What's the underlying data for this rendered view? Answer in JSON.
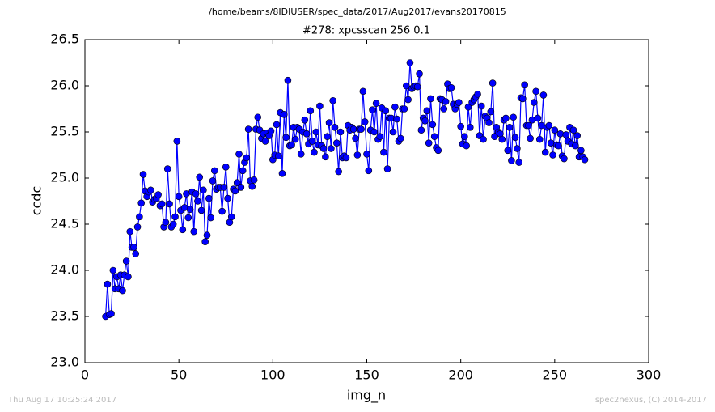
{
  "chart_data": {
    "type": "line",
    "suptitle": "/home/beams/8IDIUSER/spec_data/2017/Aug2017/evans20170815",
    "title": "#278: xpcsscan 256 0.1",
    "xlabel": "img_n",
    "ylabel": "ccdc",
    "footer_left": "Thu Aug 17 10:25:24 2017",
    "footer_right": "spec2nexus, (C) 2014-2017",
    "xlim": [
      0,
      300
    ],
    "xticks": [
      0,
      50,
      100,
      150,
      200,
      250,
      300
    ],
    "ylim": [
      23.0,
      26.5
    ],
    "yticks": [
      {
        "value": 23.0,
        "label": "23.0"
      },
      23.5,
      {
        "value": 24.0,
        "label": "24.0"
      },
      24.5,
      {
        "value": 25.0,
        "label": "25.0"
      },
      25.5,
      {
        "value": 26.0,
        "label": "26.0"
      },
      26.5
    ],
    "series": [
      {
        "color": "#0000ff",
        "x": [
          11,
          12,
          13,
          14,
          15,
          16,
          17,
          18,
          19,
          20,
          21,
          22,
          23,
          24,
          25,
          26,
          27,
          28,
          29,
          30,
          31,
          32,
          33,
          34,
          35,
          36,
          37,
          38,
          39,
          40,
          41,
          42,
          43,
          44,
          45,
          46,
          47,
          48,
          49,
          50,
          51,
          52,
          53,
          54,
          55,
          56,
          57,
          58,
          59,
          60,
          61,
          62,
          63,
          64,
          65,
          66,
          67,
          68,
          69,
          70,
          71,
          72,
          73,
          74,
          75,
          76,
          77,
          78,
          79,
          80,
          81,
          82,
          83,
          84,
          85,
          86,
          87,
          88,
          89,
          90,
          91,
          92,
          93,
          94,
          95,
          96,
          97,
          98,
          99,
          100,
          101,
          102,
          103,
          104,
          105,
          106,
          107,
          108,
          109,
          110,
          111,
          112,
          113,
          114,
          115,
          116,
          117,
          118,
          119,
          120,
          121,
          122,
          123,
          124,
          125,
          126,
          127,
          128,
          129,
          130,
          131,
          132,
          133,
          134,
          135,
          136,
          137,
          138,
          139,
          140,
          141,
          142,
          143,
          144,
          145,
          146,
          147,
          148,
          149,
          150,
          151,
          152,
          153,
          154,
          155,
          156,
          157,
          158,
          159,
          160,
          161,
          162,
          163,
          164,
          165,
          166,
          167,
          168,
          169,
          170,
          171,
          172,
          173,
          174,
          175,
          176,
          177,
          178,
          179,
          180,
          181,
          182,
          183,
          184,
          185,
          186,
          187,
          188,
          189,
          190,
          191,
          192,
          193,
          194,
          195,
          196,
          197,
          198,
          199,
          200,
          201,
          202,
          203,
          204,
          205,
          206,
          207,
          208,
          209,
          210,
          211,
          212,
          213,
          214,
          215,
          216,
          217,
          218,
          219,
          220,
          221,
          222,
          223,
          224,
          225,
          226,
          227,
          228,
          229,
          230,
          231,
          232,
          233,
          234,
          235,
          236,
          237,
          238,
          239,
          240,
          241,
          242,
          243,
          244,
          245,
          246,
          247,
          248,
          249,
          250,
          251,
          252,
          253,
          254,
          255,
          256,
          257,
          258,
          259,
          260,
          261,
          262,
          263,
          264,
          265,
          266
        ],
        "values": [
          23.5,
          23.85,
          23.52,
          23.53,
          24.0,
          23.8,
          23.93,
          23.8,
          23.95,
          23.78,
          23.95,
          24.1,
          23.93,
          24.42,
          24.25,
          24.25,
          24.18,
          24.47,
          24.58,
          24.73,
          25.04,
          24.86,
          24.8,
          24.85,
          24.87,
          24.74,
          24.77,
          24.78,
          24.82,
          24.7,
          24.72,
          24.47,
          24.52,
          25.1,
          24.72,
          24.47,
          24.5,
          24.58,
          25.4,
          24.8,
          24.65,
          24.44,
          24.68,
          24.83,
          24.57,
          24.66,
          24.85,
          24.42,
          24.83,
          24.75,
          25.01,
          24.65,
          24.87,
          24.31,
          24.38,
          24.78,
          24.57,
          24.97,
          25.08,
          24.88,
          24.9,
          24.9,
          24.64,
          24.9,
          25.12,
          24.78,
          24.52,
          24.58,
          24.88,
          24.86,
          24.95,
          25.26,
          24.9,
          25.08,
          25.17,
          25.22,
          25.53,
          24.97,
          24.91,
          24.98,
          25.53,
          25.66,
          25.52,
          25.43,
          25.48,
          25.4,
          25.49,
          25.46,
          25.51,
          25.2,
          25.25,
          25.58,
          25.24,
          25.71,
          25.05,
          25.69,
          25.44,
          26.06,
          25.35,
          25.36,
          25.55,
          25.42,
          25.55,
          25.53,
          25.26,
          25.5,
          25.63,
          25.48,
          25.37,
          25.73,
          25.4,
          25.28,
          25.5,
          25.36,
          25.78,
          25.35,
          25.32,
          25.23,
          25.45,
          25.6,
          25.32,
          25.84,
          25.55,
          25.38,
          25.07,
          25.5,
          25.22,
          25.24,
          25.22,
          25.57,
          25.52,
          25.55,
          25.53,
          25.43,
          25.25,
          25.53,
          25.53,
          25.94,
          25.61,
          25.26,
          25.08,
          25.52,
          25.74,
          25.5,
          25.81,
          25.42,
          25.45,
          25.76,
          25.28,
          25.73,
          25.1,
          25.65,
          25.65,
          25.5,
          25.77,
          25.64,
          25.4,
          25.43,
          25.75,
          25.75,
          26.0,
          25.85,
          26.25,
          25.97,
          25.99,
          26.0,
          25.99,
          26.13,
          25.52,
          25.65,
          25.62,
          25.73,
          25.38,
          25.86,
          25.58,
          25.45,
          25.33,
          25.3,
          25.86,
          25.85,
          25.75,
          25.83,
          26.02,
          25.97,
          25.98,
          25.8,
          25.75,
          25.8,
          25.82,
          25.56,
          25.37,
          25.45,
          25.35,
          25.77,
          25.55,
          25.82,
          25.85,
          25.88,
          25.91,
          25.46,
          25.78,
          25.42,
          25.67,
          25.65,
          25.6,
          25.72,
          26.03,
          25.45,
          25.55,
          25.5,
          25.48,
          25.42,
          25.63,
          25.65,
          25.3,
          25.55,
          25.19,
          25.66,
          25.44,
          25.32,
          25.17,
          25.87,
          25.86,
          26.01,
          25.57,
          25.57,
          25.43,
          25.63,
          25.82,
          25.94,
          25.65,
          25.42,
          25.57,
          25.9,
          25.28,
          25.55,
          25.57,
          25.38,
          25.25,
          25.52,
          25.36,
          25.35,
          25.48,
          25.24,
          25.21,
          25.47,
          25.4,
          25.55,
          25.37,
          25.52,
          25.35,
          25.46,
          25.23,
          25.3,
          25.23,
          25.2
        ]
      }
    ]
  }
}
